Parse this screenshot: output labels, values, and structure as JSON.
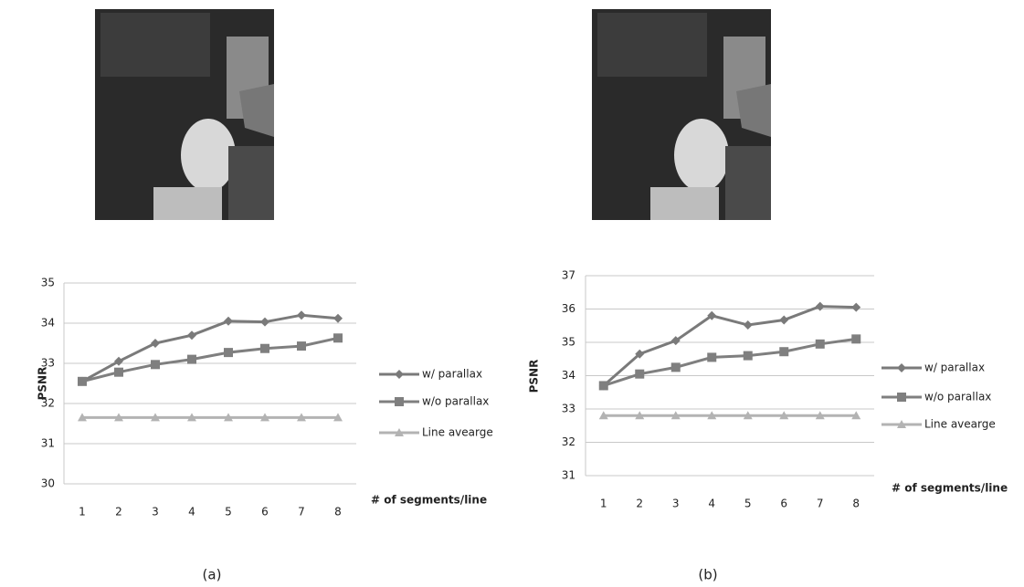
{
  "chart_data": [
    {
      "type": "line",
      "caption": "(a)",
      "y_label": "PSNR",
      "x_label": "# of segments/line",
      "categories": [
        1,
        2,
        3,
        4,
        5,
        6,
        7,
        8
      ],
      "ylim": [
        30,
        35
      ],
      "yticks": [
        30,
        31,
        32,
        33,
        34,
        35
      ],
      "grid": true,
      "series": [
        {
          "name": "w/ parallax",
          "color": "#7a7a7a",
          "marker": "diamond",
          "values": [
            32.55,
            33.05,
            33.5,
            33.7,
            34.05,
            34.03,
            34.2,
            34.12
          ]
        },
        {
          "name": "w/o parallax",
          "color": "#7f7f7f",
          "marker": "square",
          "values": [
            32.55,
            32.78,
            32.97,
            33.1,
            33.27,
            33.37,
            33.43,
            33.63
          ]
        },
        {
          "name": "Line avearge",
          "color": "#b3b3b3",
          "marker": "triangle",
          "values": [
            31.65,
            31.65,
            31.65,
            31.65,
            31.65,
            31.65,
            31.65,
            31.65
          ]
        }
      ]
    },
    {
      "type": "line",
      "caption": "(b)",
      "y_label": "PSNR",
      "x_label": "# of segments/line",
      "categories": [
        1,
        2,
        3,
        4,
        5,
        6,
        7,
        8
      ],
      "ylim": [
        31,
        37
      ],
      "yticks": [
        31,
        32,
        33,
        34,
        35,
        36,
        37
      ],
      "grid": true,
      "series": [
        {
          "name": "w/ parallax",
          "color": "#7a7a7a",
          "marker": "diamond",
          "values": [
            33.7,
            34.65,
            35.05,
            35.8,
            35.52,
            35.67,
            36.08,
            36.05
          ]
        },
        {
          "name": "w/o parallax",
          "color": "#7f7f7f",
          "marker": "square",
          "values": [
            33.7,
            34.05,
            34.25,
            34.55,
            34.6,
            34.72,
            34.95,
            35.1
          ]
        },
        {
          "name": "Line avearge",
          "color": "#b3b3b3",
          "marker": "triangle",
          "values": [
            32.8,
            32.8,
            32.8,
            32.8,
            32.8,
            32.8,
            32.8,
            32.8
          ]
        }
      ]
    }
  ]
}
